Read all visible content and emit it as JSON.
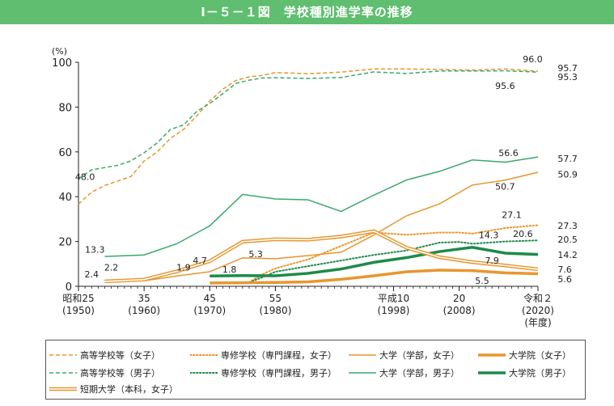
{
  "title": "Ⅰ－５－１図　学校種別進学率の推移",
  "chart_data": {
    "type": "line",
    "ylabel": "(%)",
    "ylim": [
      0,
      100
    ],
    "yticks": [
      0,
      20,
      40,
      60,
      80,
      100
    ],
    "xlim": [
      1950,
      2020
    ],
    "xtick_labels": [
      {
        "x": 1950,
        "line1": "昭和25",
        "line2": "(1950)"
      },
      {
        "x": 1960,
        "line1": "35",
        "line2": "(1960)"
      },
      {
        "x": 1970,
        "line1": "45",
        "line2": "(1970)"
      },
      {
        "x": 1980,
        "line1": "55",
        "line2": "(1980)"
      },
      {
        "x": 1998,
        "line1": "平成10",
        "line2": "(1998)"
      },
      {
        "x": 2008,
        "line1": "20",
        "line2": "(2008)"
      },
      {
        "x": 2020,
        "line1": "令和２",
        "line2": "(2020)"
      }
    ],
    "x_unit": "(年度)",
    "series": [
      {
        "name": "高等学校等（女子）",
        "color": "#e8962e",
        "style": "dashed",
        "x": [
          1950,
          1952,
          1954,
          1956,
          1958,
          1960,
          1962,
          1964,
          1966,
          1968,
          1970,
          1972,
          1974,
          1976,
          1978,
          1980,
          1985,
          1990,
          1995,
          2000,
          2005,
          2010,
          2015,
          2020
        ],
        "y": [
          36.7,
          42,
          45,
          47,
          49,
          55.9,
          60,
          66,
          70,
          76,
          82.7,
          88,
          91.9,
          93.5,
          94.1,
          95.4,
          94.9,
          95.6,
          97.0,
          97.0,
          96.8,
          96.5,
          97.0,
          96.0
        ]
      },
      {
        "name": "高等学校等（男子）",
        "color": "#3aa86a",
        "style": "dashed",
        "x": [
          1950,
          1952,
          1954,
          1956,
          1958,
          1960,
          1962,
          1964,
          1966,
          1968,
          1970,
          1972,
          1974,
          1976,
          1978,
          1980,
          1985,
          1990,
          1995,
          2000,
          2005,
          2010,
          2015,
          2020
        ],
        "y": [
          48.0,
          52,
          53,
          54,
          56,
          59.6,
          64,
          70,
          72,
          78,
          81.6,
          86,
          90.6,
          92,
          93,
          93.1,
          92.8,
          93.2,
          95.7,
          95.0,
          96.1,
          96.1,
          96.2,
          95.6
        ]
      },
      {
        "name": "専修学校（専門課程，女子）",
        "color": "#e8962e",
        "style": "dotted",
        "x": [
          1976,
          1978,
          1980,
          1985,
          1990,
          1995,
          2000,
          2005,
          2008,
          2010,
          2015,
          2020
        ],
        "y": [
          1.8,
          5.3,
          8.0,
          12.0,
          18.0,
          24.0,
          23.0,
          24.0,
          24.0,
          23.5,
          26.0,
          27.3
        ]
      },
      {
        "name": "専修学校（専門課程，男子）",
        "color": "#1f8a4c",
        "style": "dotted",
        "x": [
          1976,
          1978,
          1980,
          1985,
          1990,
          1995,
          2000,
          2005,
          2008,
          2010,
          2015,
          2020
        ],
        "y": [
          1.8,
          4.0,
          6.5,
          9.0,
          11.5,
          14.0,
          16.0,
          19.5,
          19.8,
          19.0,
          20.0,
          20.5
        ]
      },
      {
        "name": "大学（学部，女子）",
        "color": "#e8962e",
        "style": "solid",
        "x": [
          1954,
          1960,
          1965,
          1970,
          1975,
          1980,
          1985,
          1990,
          1995,
          2000,
          2005,
          2010,
          2015,
          2020
        ],
        "y": [
          2.4,
          2.5,
          4.6,
          6.5,
          12.7,
          12.3,
          13.7,
          15.2,
          22.9,
          31.5,
          36.8,
          45.2,
          47.4,
          50.9
        ]
      },
      {
        "name": "大学院（女子）",
        "color": "#e8962e",
        "style": "thick",
        "x": [
          1970,
          1975,
          1980,
          1985,
          1990,
          1995,
          2000,
          2005,
          2010,
          2015,
          2020
        ],
        "y": [
          1.5,
          1.6,
          1.7,
          2.0,
          3.1,
          4.7,
          6.5,
          7.2,
          7.0,
          6.0,
          5.6
        ]
      },
      {
        "name": "大学（学部，男子）",
        "color": "#3aa86a",
        "style": "solid",
        "x": [
          1954,
          1960,
          1965,
          1970,
          1975,
          1980,
          1985,
          1990,
          1995,
          2000,
          2005,
          2010,
          2015,
          2020
        ],
        "y": [
          13.3,
          14.0,
          19.0,
          27.0,
          41.0,
          39.0,
          38.6,
          33.4,
          40.7,
          47.5,
          51.3,
          56.4,
          55.4,
          57.7
        ]
      },
      {
        "name": "大学院（男子）",
        "color": "#1d8a48",
        "style": "thick",
        "x": [
          1970,
          1975,
          1980,
          1985,
          1990,
          1995,
          2000,
          2005,
          2010,
          2015,
          2020
        ],
        "y": [
          4.6,
          4.8,
          4.7,
          5.8,
          7.7,
          10.7,
          12.8,
          15.5,
          17.4,
          14.8,
          14.2
        ]
      },
      {
        "name": "短期大学（本科，女子）",
        "color": "#e8962e",
        "style": "double",
        "x": [
          1954,
          1960,
          1965,
          1970,
          1975,
          1980,
          1985,
          1990,
          1995,
          2000,
          2005,
          2010,
          2015,
          2020
        ],
        "y": [
          2.2,
          3.0,
          6.7,
          11.2,
          19.9,
          21.0,
          20.8,
          22.2,
          24.6,
          17.2,
          13.0,
          10.8,
          9.3,
          7.6
        ]
      }
    ],
    "annotations": [
      {
        "text": "48.0",
        "x": 1951,
        "y": 49
      },
      {
        "text": "13.3",
        "x": 1952.5,
        "y": 16.5
      },
      {
        "text": "2.4",
        "x": 1952,
        "y": 5.5
      },
      {
        "text": "2.2",
        "x": 1955,
        "y": 8.5
      },
      {
        "text": "1.9",
        "x": 1966,
        "y": 8.5
      },
      {
        "text": "4.7",
        "x": 1968.5,
        "y": 11.5
      },
      {
        "text": "5.3",
        "x": 1977,
        "y": 14.5
      },
      {
        "text": "1.8",
        "x": 1973,
        "y": 7.5
      },
      {
        "text": "96.0",
        "x": 2019.2,
        "y": 101.5
      },
      {
        "text": "95.7",
        "x": 2023,
        "y": 97.5
      },
      {
        "text": "95.3",
        "x": 2023,
        "y": 93.5
      },
      {
        "text": "95.6",
        "x": 2015,
        "y": 89.5
      },
      {
        "text": "56.6",
        "x": 2015.5,
        "y": 59.5
      },
      {
        "text": "57.7",
        "x": 2023,
        "y": 57
      },
      {
        "text": "50.9",
        "x": 2023,
        "y": 50
      },
      {
        "text": "50.7",
        "x": 2015,
        "y": 44.5
      },
      {
        "text": "27.1",
        "x": 2016,
        "y": 32
      },
      {
        "text": "27.3",
        "x": 2023,
        "y": 27
      },
      {
        "text": "20.6",
        "x": 2017.7,
        "y": 23.5
      },
      {
        "text": "14.3",
        "x": 2012.5,
        "y": 23
      },
      {
        "text": "20.5",
        "x": 2023,
        "y": 21
      },
      {
        "text": "14.2",
        "x": 2023,
        "y": 14
      },
      {
        "text": "7.9",
        "x": 2013,
        "y": 11.5
      },
      {
        "text": "7.6",
        "x": 2023,
        "y": 7.5
      },
      {
        "text": "5.5",
        "x": 2011.5,
        "y": 2.5
      },
      {
        "text": "5.6",
        "x": 2023,
        "y": 3.2
      }
    ]
  }
}
